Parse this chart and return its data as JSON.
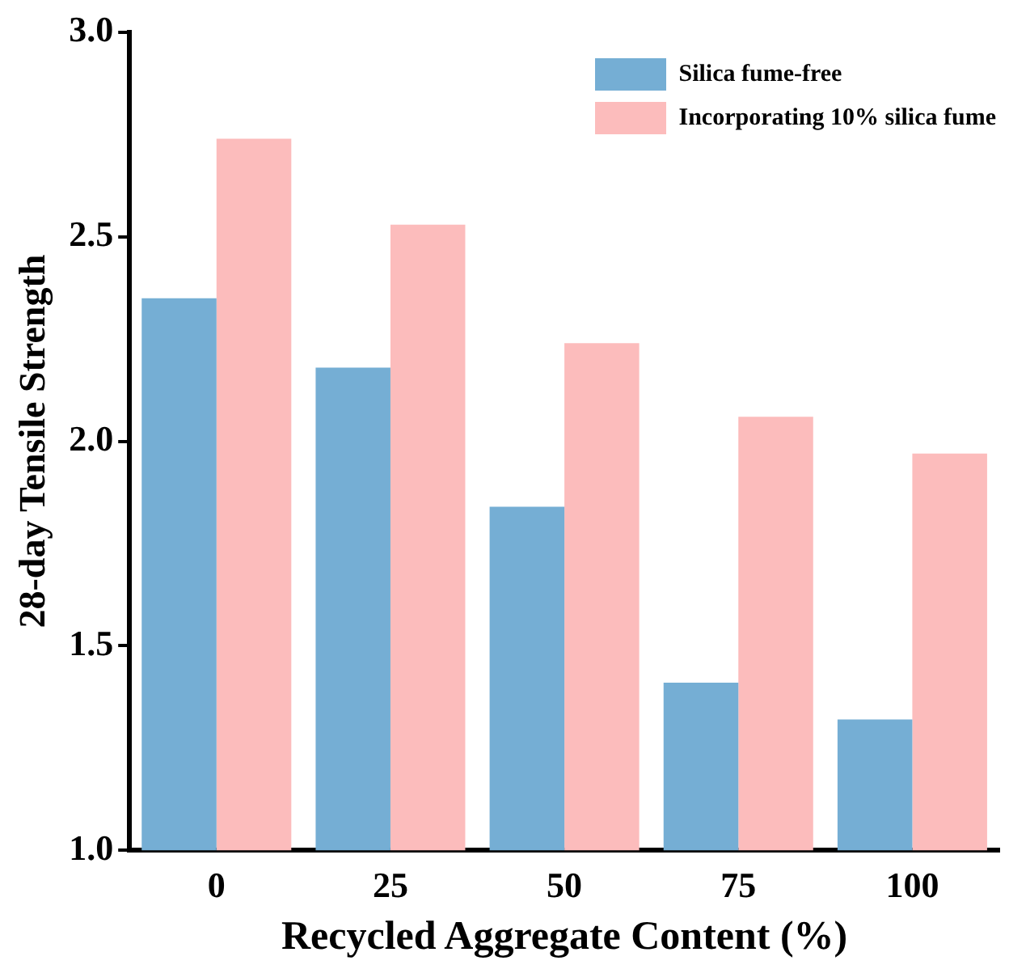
{
  "chart_data": {
    "type": "bar",
    "xlabel": "Recycled Aggregate Content (%)",
    "ylabel": "28-day Tensile Strength",
    "categories": [
      "0",
      "25",
      "50",
      "75",
      "100"
    ],
    "series": [
      {
        "name": "Silica fume-free",
        "color": "#75aed4",
        "values": [
          2.35,
          2.18,
          1.84,
          1.41,
          1.32
        ]
      },
      {
        "name": "Incorporating 10% silica fume",
        "color": "#fcbcbc",
        "values": [
          2.74,
          2.53,
          2.24,
          2.06,
          1.97
        ]
      }
    ],
    "ylim": [
      1.0,
      3.0
    ],
    "yticks": [
      {
        "value": 1.0,
        "label": "1.0"
      },
      {
        "value": 1.5,
        "label": "1.5"
      },
      {
        "value": 2.0,
        "label": "2.0"
      },
      {
        "value": 2.5,
        "label": "2.5"
      },
      {
        "value": 3.0,
        "label": "3.0"
      }
    ],
    "grid": false,
    "legend": "top right"
  }
}
